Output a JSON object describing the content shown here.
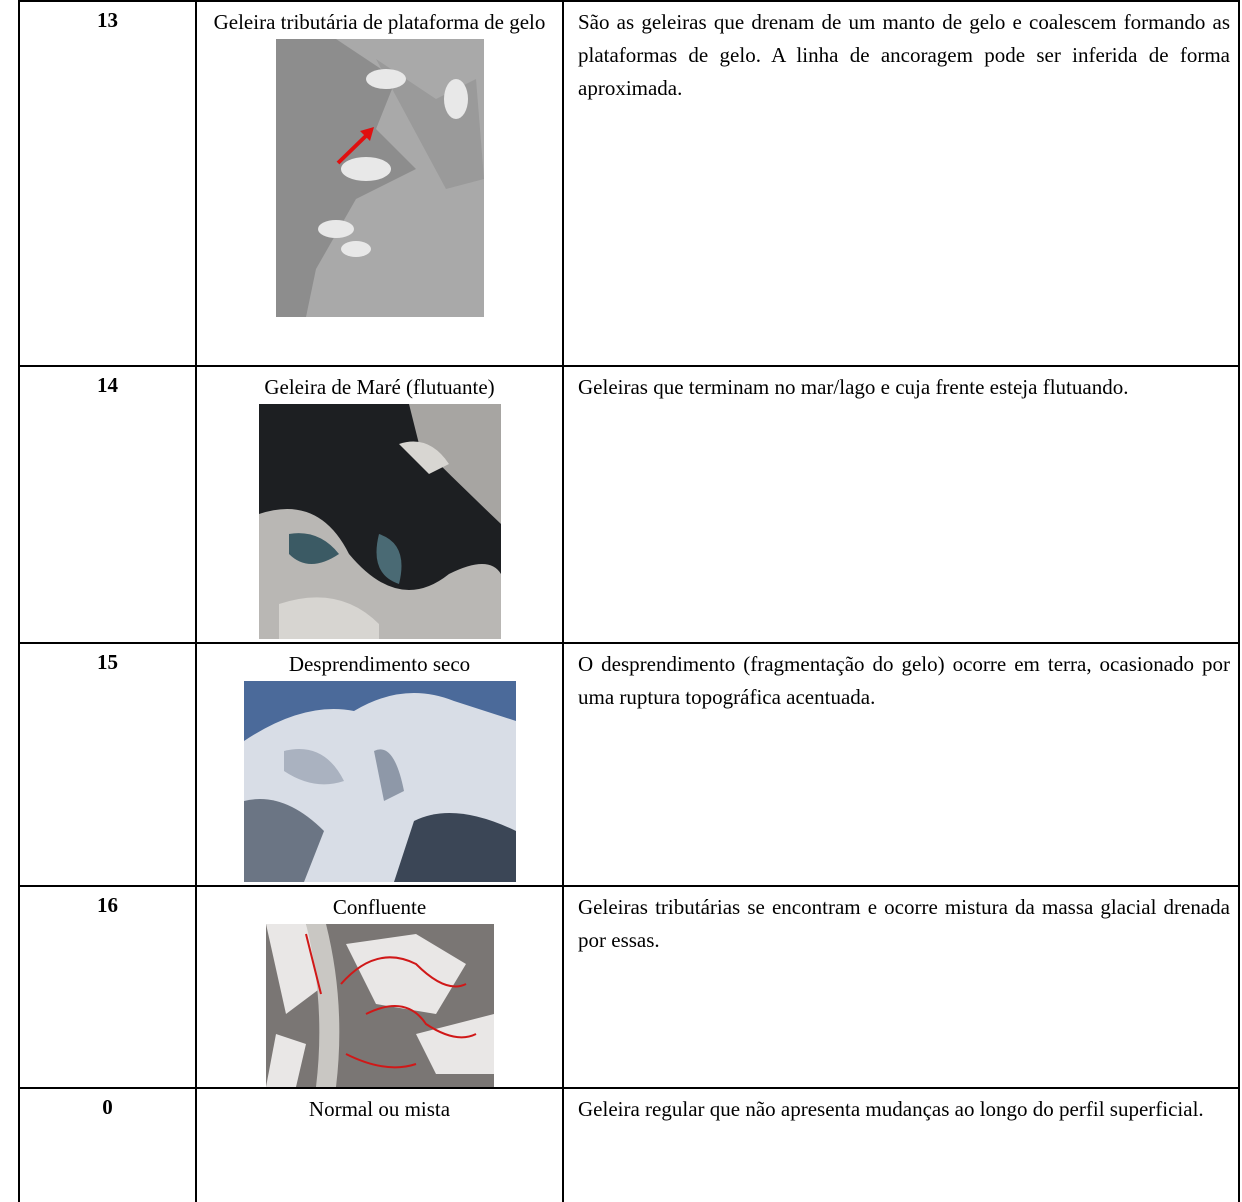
{
  "table": {
    "rows": [
      {
        "number": "13",
        "name": "Geleira tributária de plataforma de gelo",
        "description": "São as geleiras que drenam de um manto de gelo e coalescem formando as plataformas de gelo. A linha de ancoragem pode ser inferida de forma aproximada."
      },
      {
        "number": "14",
        "name": "Geleira de Maré (flutuante)",
        "description": "Geleiras que terminam no mar/lago e cuja frente esteja flutuando."
      },
      {
        "number": "15",
        "name": "Desprendimento seco",
        "description": "O desprendimento (fragmentação do gelo) ocorre em terra, ocasionado por uma ruptura topográfica acentuada."
      },
      {
        "number": "16",
        "name": "Confluente",
        "description": "Geleiras tributárias se encontram e ocorre mistura da massa glacial drenada por essas."
      },
      {
        "number": "0",
        "name": "Normal ou mista",
        "description": "Geleira regular que não apresenta mudanças ao longo do perfil superficial."
      }
    ]
  }
}
